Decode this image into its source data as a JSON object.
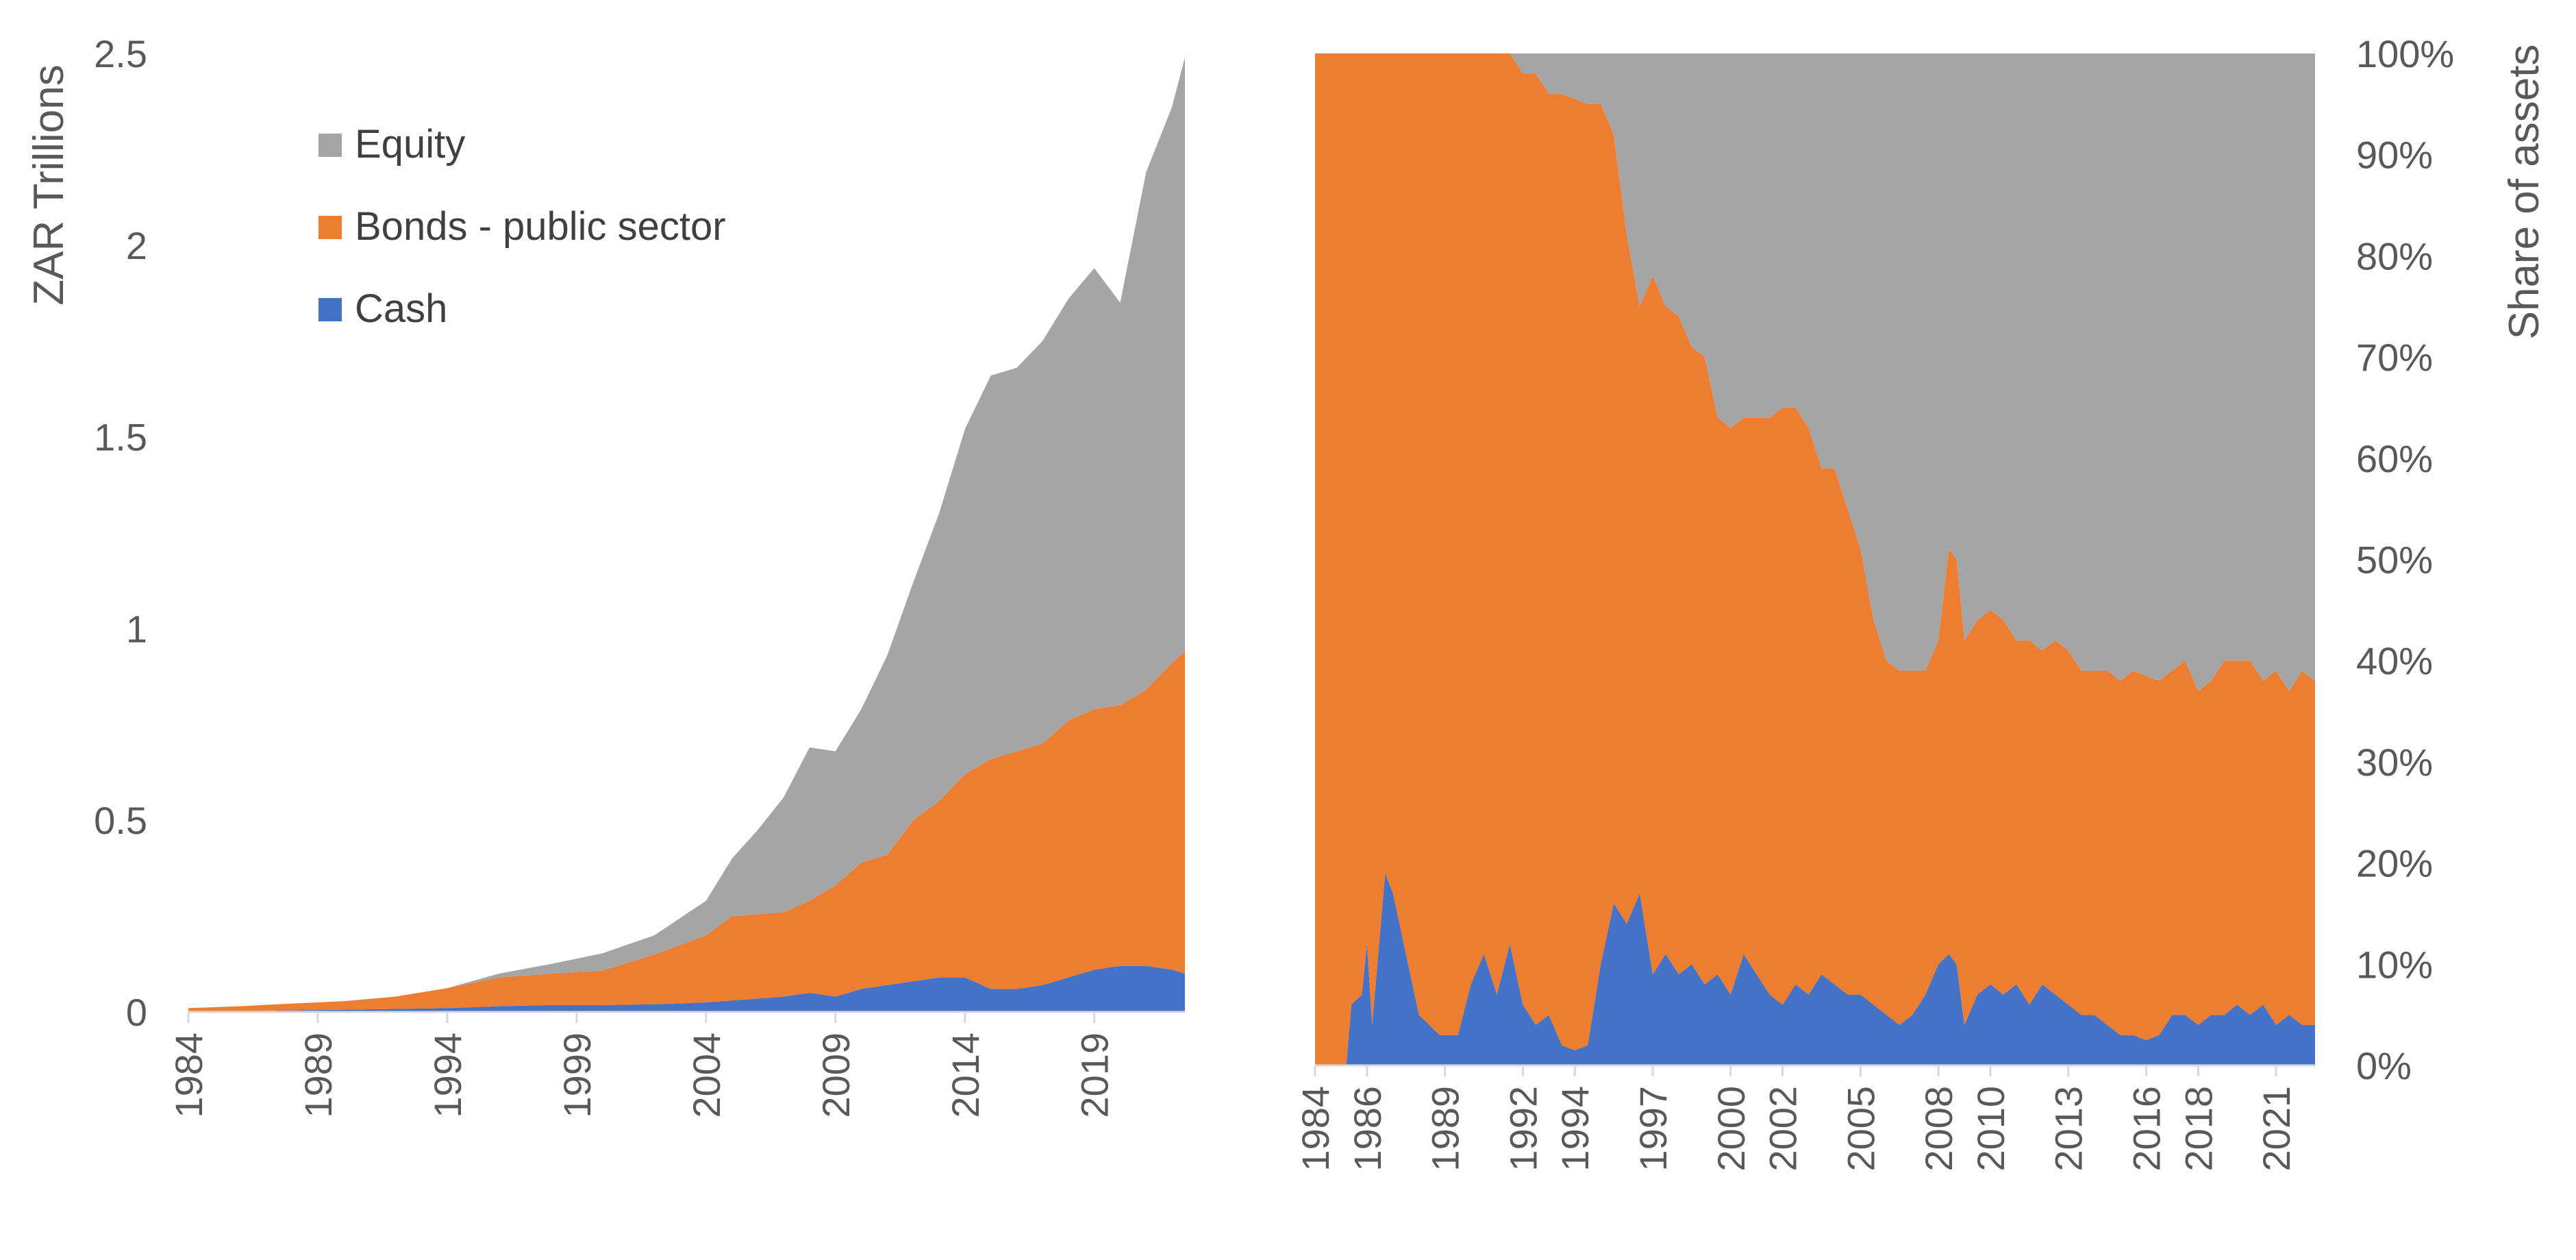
{
  "colors": {
    "equity": "#a5a5a5",
    "bonds": "#ed7d31",
    "cash": "#4472c4",
    "axis": "#d9d9d9",
    "text": "#595959"
  },
  "chart_data": [
    {
      "type": "area",
      "stacked": true,
      "ylabel": "ZAR Trillions",
      "xlabel": "",
      "title": "",
      "ylim": [
        0,
        2.5
      ],
      "yticks": [
        "0",
        "0.5",
        "1",
        "1.5",
        "2",
        "2.5"
      ],
      "xticks": [
        "1984",
        "1989",
        "1994",
        "1999",
        "2004",
        "2009",
        "2014",
        "2019"
      ],
      "grid": false,
      "legend_position": "top-left",
      "legend": [
        "Equity",
        "Bonds - public sector",
        "Cash"
      ],
      "x": [
        1984,
        1986,
        1988,
        1990,
        1992,
        1994,
        1996,
        1998,
        2000,
        2002,
        2004,
        2005,
        2006,
        2007,
        2008,
        2009,
        2010,
        2011,
        2012,
        2013,
        2014,
        2015,
        2016,
        2017,
        2018,
        2019,
        2020,
        2021,
        2022,
        2022.5
      ],
      "series": [
        {
          "name": "Cash",
          "values": [
            0.0,
            0.002,
            0.004,
            0.006,
            0.008,
            0.01,
            0.015,
            0.018,
            0.018,
            0.02,
            0.025,
            0.03,
            0.035,
            0.04,
            0.05,
            0.04,
            0.06,
            0.07,
            0.08,
            0.09,
            0.09,
            0.06,
            0.06,
            0.07,
            0.09,
            0.11,
            0.12,
            0.12,
            0.11,
            0.1
          ]
        },
        {
          "name": "Bonds - public sector",
          "values": [
            0.01,
            0.013,
            0.018,
            0.022,
            0.032,
            0.052,
            0.075,
            0.082,
            0.09,
            0.13,
            0.175,
            0.22,
            0.22,
            0.22,
            0.24,
            0.29,
            0.33,
            0.34,
            0.42,
            0.46,
            0.53,
            0.6,
            0.62,
            0.63,
            0.67,
            0.68,
            0.68,
            0.72,
            0.8,
            0.84
          ]
        },
        {
          "name": "Equity",
          "values": [
            0.0,
            0.0,
            0.0,
            0.0,
            0.0,
            0.0,
            0.01,
            0.025,
            0.045,
            0.05,
            0.09,
            0.15,
            0.22,
            0.3,
            0.4,
            0.35,
            0.4,
            0.52,
            0.62,
            0.75,
            0.9,
            1.0,
            1.0,
            1.05,
            1.1,
            1.15,
            1.05,
            1.35,
            1.45,
            1.55
          ]
        }
      ]
    },
    {
      "type": "area",
      "stacked": true,
      "percent": true,
      "ylabel": "Share of assets",
      "xlabel": "",
      "title": "",
      "ylim": [
        0,
        100
      ],
      "yticks": [
        "0%",
        "10%",
        "20%",
        "30%",
        "40%",
        "50%",
        "60%",
        "70%",
        "80%",
        "90%",
        "100%"
      ],
      "xticks": [
        "1984",
        "1986",
        "1989",
        "1992",
        "1994",
        "1997",
        "2000",
        "2002",
        "2005",
        "2008",
        "2010",
        "2013",
        "2016",
        "2018",
        "2021"
      ],
      "grid": false,
      "x": [
        1984,
        1985.2,
        1985.4,
        1985.8,
        1986,
        1986.2,
        1986.7,
        1987,
        1987.5,
        1988,
        1988.8,
        1989.5,
        1990,
        1990.5,
        1991,
        1991.5,
        1992,
        1992.5,
        1993,
        1993.5,
        1994,
        1994.5,
        1995,
        1995.5,
        1996,
        1996.5,
        1997,
        1997.5,
        1998,
        1998.5,
        1999,
        1999.5,
        2000,
        2000.5,
        2001,
        2001.5,
        2002,
        2002.5,
        2003,
        2003.5,
        2004,
        2004.5,
        2005,
        2005.5,
        2006,
        2006.5,
        2007,
        2007.5,
        2008,
        2008.4,
        2008.7,
        2009,
        2009.5,
        2010,
        2010.5,
        2011,
        2011.5,
        2012,
        2012.5,
        2013,
        2013.5,
        2014,
        2014.5,
        2015,
        2015.5,
        2016,
        2016.5,
        2017,
        2017.5,
        2018,
        2018.5,
        2019,
        2019.5,
        2020,
        2020.5,
        2021,
        2021.5,
        2022,
        2022.5
      ],
      "series": [
        {
          "name": "Cash",
          "values": [
            0,
            0,
            6,
            7,
            12,
            4,
            19,
            17,
            11,
            5,
            3,
            3,
            8,
            11,
            7,
            12,
            6,
            4,
            5,
            2,
            1.5,
            2,
            10,
            16,
            14,
            17,
            9,
            11,
            9,
            10,
            8,
            9,
            7,
            11,
            9,
            7,
            6,
            8,
            7,
            9,
            8,
            7,
            7,
            6,
            5,
            4,
            5,
            7,
            10,
            11,
            10,
            4,
            7,
            8,
            7,
            8,
            6,
            8,
            7,
            6,
            5,
            5,
            4,
            3,
            3,
            2.5,
            3,
            5,
            5,
            4,
            5,
            5,
            6,
            5,
            6,
            4,
            5,
            4,
            4
          ]
        },
        {
          "name": "Bonds - public sector",
          "values": [
            100,
            100,
            94,
            93,
            88,
            96,
            81,
            83,
            89,
            95,
            97,
            97,
            92,
            89,
            93,
            88,
            92,
            94,
            91,
            94,
            94,
            93,
            85,
            76,
            68,
            58,
            69,
            64,
            65,
            61,
            62,
            55,
            56,
            53,
            55,
            57,
            59,
            57,
            56,
            50,
            51,
            48,
            44,
            38,
            35,
            35,
            34,
            32,
            32,
            40,
            40,
            38,
            37,
            37,
            37,
            34,
            36,
            33,
            35,
            35,
            34,
            34,
            35,
            35,
            36,
            36,
            35,
            34,
            35,
            33,
            33,
            35,
            34,
            35,
            32,
            35,
            32,
            35,
            34
          ]
        },
        {
          "name": "Equity",
          "values": [
            0,
            0,
            0,
            0,
            0,
            0,
            0,
            0,
            0,
            0,
            0,
            0,
            0,
            0,
            0,
            0,
            2,
            2,
            4,
            4,
            4.5,
            5,
            5,
            8,
            18,
            25,
            22,
            25,
            26,
            29,
            30,
            36,
            37,
            36,
            36,
            36,
            35,
            35,
            37,
            41,
            41,
            45,
            49,
            56,
            60,
            61,
            61,
            61,
            58,
            49,
            50,
            58,
            56,
            55,
            56,
            58,
            58,
            59,
            58,
            59,
            61,
            61,
            61,
            62,
            61,
            61.5,
            62,
            61,
            60,
            63,
            62,
            60,
            60,
            60,
            62,
            61,
            63,
            61,
            62
          ]
        }
      ]
    }
  ]
}
